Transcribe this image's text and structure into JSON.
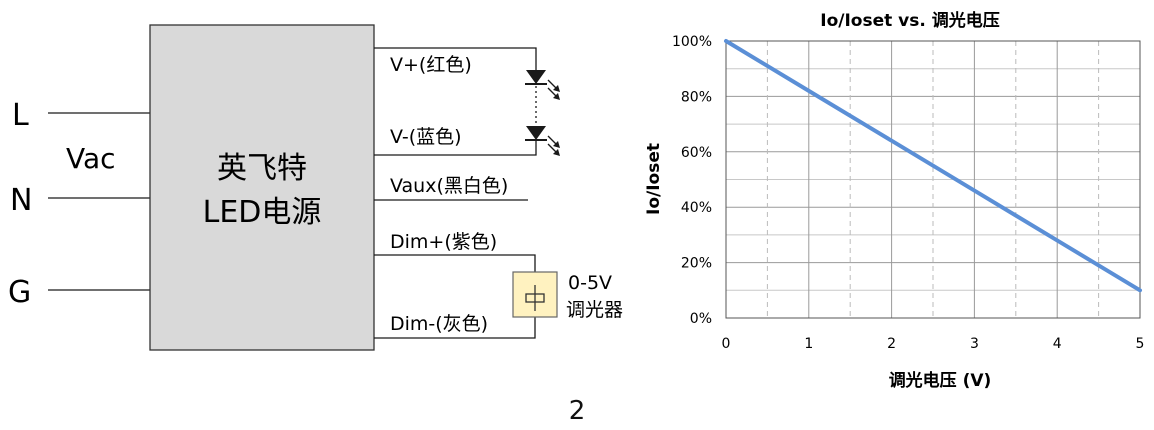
{
  "diagram": {
    "input_labels": {
      "L": "L",
      "N": "N",
      "G": "G",
      "vac": "Vac"
    },
    "box": {
      "line1": "英飞特",
      "line2": "LED电源"
    },
    "outputs": {
      "v_plus": "V+(红色)",
      "v_minus": "V-(蓝色)",
      "vaux": "Vaux(黑白色)",
      "dim_plus": "Dim+(紫色)",
      "dim_minus": "Dim-(灰色)"
    },
    "dimmer": {
      "line1": "0-5V",
      "line2": "调光器"
    },
    "colors": {
      "line": "#1a1a1a",
      "box_fill": "#d9d9d9",
      "dimmer_fill": "#fff2c0"
    }
  },
  "chart_data": {
    "type": "line",
    "title": "Io/Ioset vs. 调光电压",
    "xlabel": "调光电压 (V)",
    "ylabel": "Io/Ioset",
    "x_ticks": [
      "0",
      "1",
      "2",
      "3",
      "4",
      "5"
    ],
    "y_ticks": [
      "0%",
      "20%",
      "40%",
      "60%",
      "80%",
      "100%"
    ],
    "xlim": [
      0,
      5
    ],
    "ylim": [
      0,
      100
    ],
    "grid": true,
    "series": [
      {
        "x": [
          0,
          1,
          2,
          3,
          4,
          5
        ],
        "y": [
          100,
          82,
          64,
          46,
          28,
          10
        ],
        "color": "#5b8fd6"
      }
    ]
  },
  "page_number": "2"
}
